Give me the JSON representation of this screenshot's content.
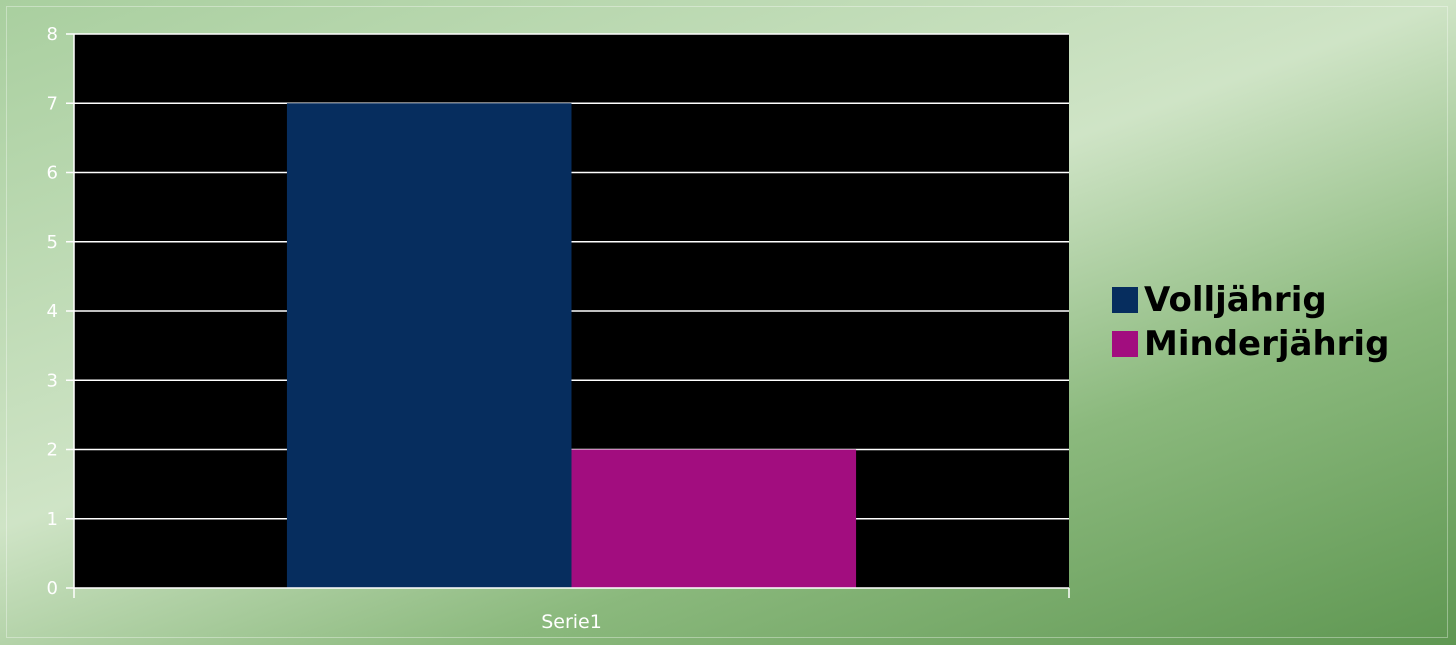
{
  "chart_data": {
    "type": "bar",
    "categories": [
      "Serie1"
    ],
    "series": [
      {
        "name": "Volljährig",
        "values": [
          7
        ],
        "color": "#062d5e"
      },
      {
        "name": "Minderjährig",
        "values": [
          2
        ],
        "color": "#a20d7f"
      }
    ],
    "title": "",
    "xlabel": "",
    "ylabel": "",
    "ylim": [
      0,
      8
    ],
    "yticks": [
      "0",
      "1",
      "2",
      "3",
      "4",
      "5",
      "6",
      "7",
      "8"
    ],
    "grid": true,
    "plot_background": "#000000",
    "legend_position": "right"
  }
}
